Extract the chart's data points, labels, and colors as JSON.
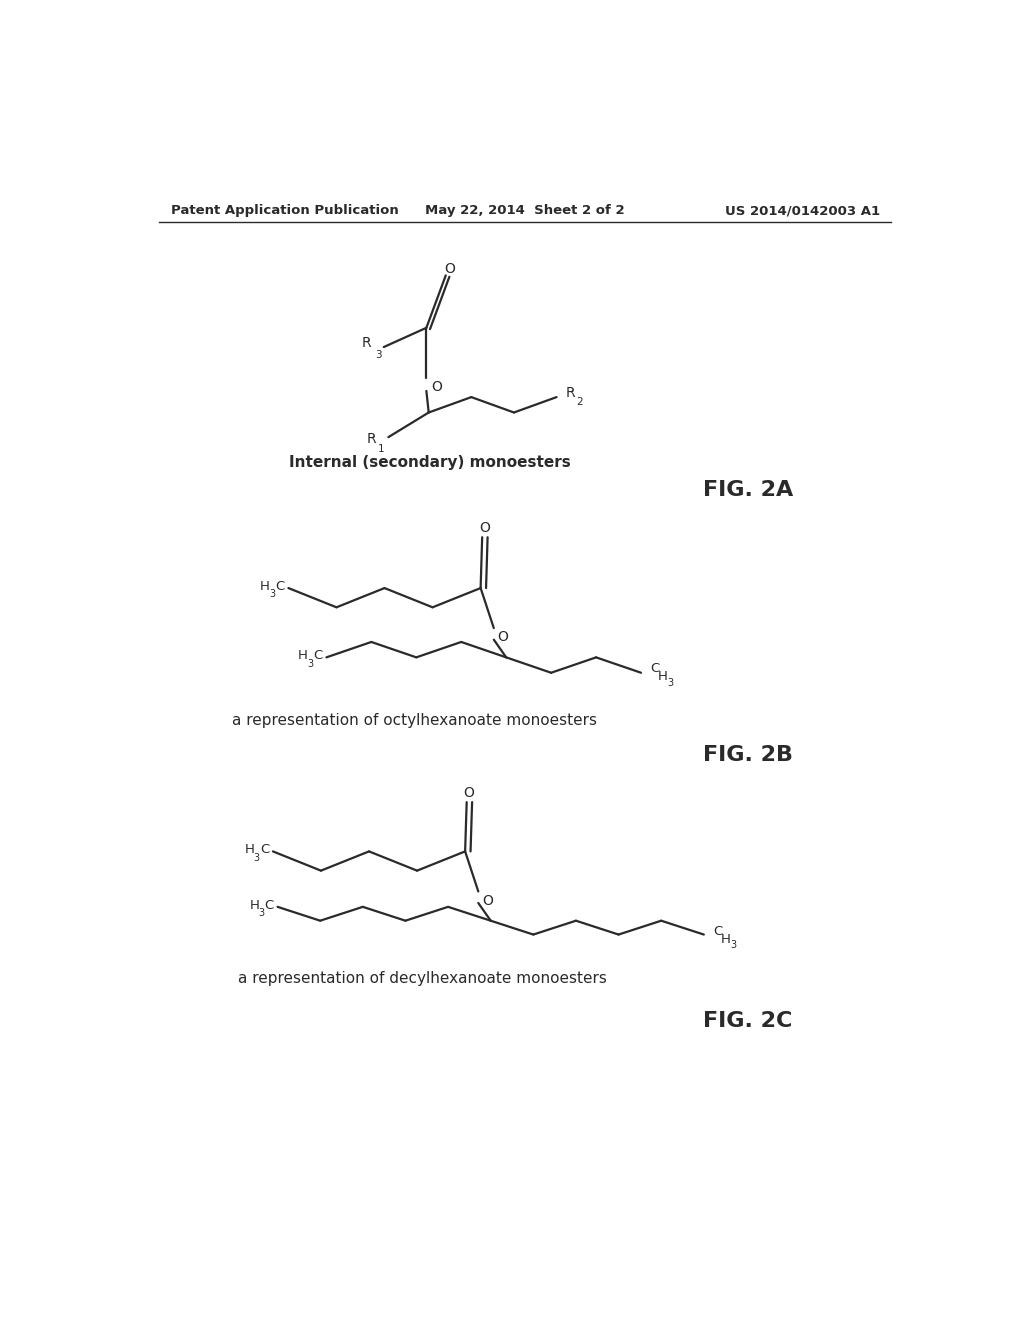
{
  "background_color": "#ffffff",
  "header_left": "Patent Application Publication",
  "header_center": "May 22, 2014  Sheet 2 of 2",
  "header_right": "US 2014/0142003 A1",
  "fig2a_label": "FIG. 2A",
  "fig2b_label": "FIG. 2B",
  "fig2c_label": "FIG. 2C",
  "fig2a_caption": "Internal (secondary) monoesters",
  "fig2b_caption": "a representation of octylhexanoate monoesters",
  "fig2c_caption": "a representation of decylhexanoate monoesters",
  "line_color": "#2a2a2a",
  "text_color": "#2a2a2a",
  "header_fontsize": 9.5,
  "caption_fontsize": 10.5,
  "fig_label_fontsize": 15,
  "line_width": 1.6
}
